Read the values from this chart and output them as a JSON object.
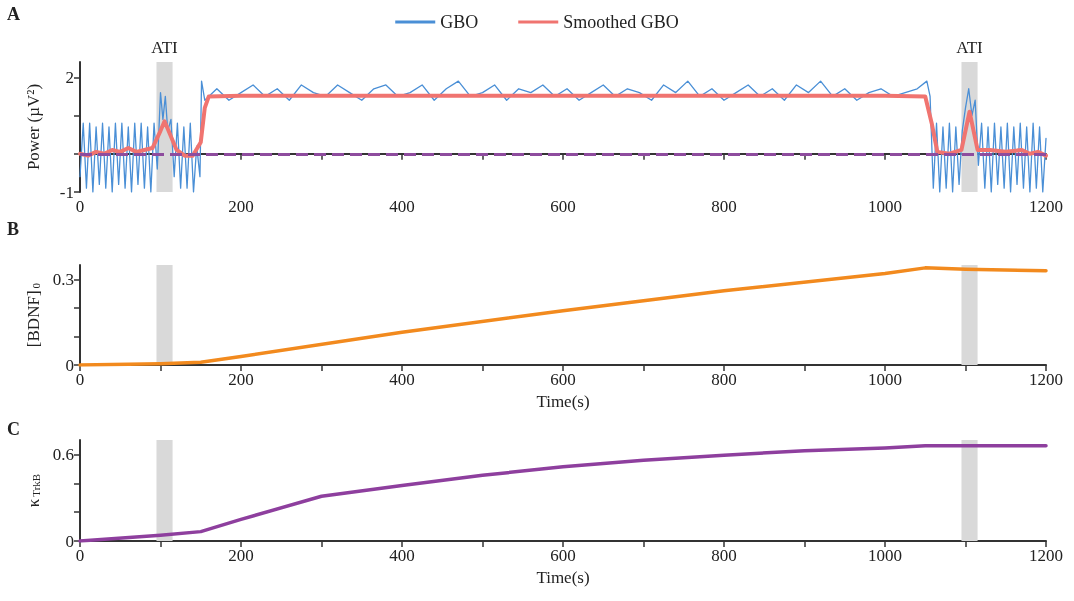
{
  "chart_data": [
    {
      "type": "line",
      "title": "A",
      "ylabel": "Power (µV²)",
      "legend": "top",
      "grid": false,
      "marker": "none",
      "xlim": [
        0,
        1200
      ],
      "xticks": [
        0,
        {
          "value": 100,
          "label": null
        },
        200,
        {
          "value": 300,
          "label": null
        },
        400,
        {
          "value": 500,
          "label": null
        },
        600,
        {
          "value": 700,
          "label": null
        },
        800,
        {
          "value": 900,
          "label": null
        },
        1000,
        {
          "value": 1100,
          "label": null
        },
        1200
      ],
      "ylim": [
        -1,
        2.4
      ],
      "yticks": [
        -1,
        {
          "value": 0,
          "label": null
        },
        {
          "value": 1,
          "label": null
        },
        2
      ],
      "bands": [
        {
          "axis": "x",
          "from": 95,
          "to": 115,
          "label": "ATI",
          "color": "#d9d9d9"
        },
        {
          "axis": "x",
          "from": 1095,
          "to": 1115,
          "label": "ATI",
          "color": "#d9d9d9"
        }
      ],
      "ref_lines": [
        {
          "axis": "y",
          "value": 0,
          "color": "#8e4c9e",
          "line_style": "dashed"
        }
      ],
      "series": [
        {
          "name": "GBO",
          "color": "#4a8fd6",
          "line_style": "solid",
          "x": [
            0,
            4,
            8,
            12,
            16,
            20,
            24,
            28,
            32,
            36,
            40,
            44,
            48,
            52,
            56,
            60,
            64,
            68,
            72,
            76,
            80,
            84,
            88,
            92,
            96,
            100,
            103,
            106,
            109,
            113,
            117,
            121,
            125,
            129,
            133,
            137,
            141,
            145,
            149,
            151,
            155,
            170,
            185,
            200,
            215,
            230,
            245,
            260,
            275,
            290,
            305,
            320,
            335,
            350,
            365,
            380,
            395,
            410,
            425,
            440,
            455,
            470,
            485,
            500,
            515,
            530,
            545,
            560,
            575,
            590,
            605,
            620,
            635,
            650,
            665,
            680,
            695,
            710,
            725,
            740,
            755,
            770,
            785,
            800,
            815,
            830,
            845,
            860,
            875,
            890,
            905,
            920,
            935,
            950,
            965,
            980,
            995,
            1010,
            1025,
            1040,
            1052,
            1056,
            1060,
            1064,
            1068,
            1072,
            1076,
            1080,
            1084,
            1088,
            1092,
            1096,
            1100,
            1104,
            1108,
            1112,
            1116,
            1120,
            1124,
            1128,
            1132,
            1136,
            1140,
            1144,
            1148,
            1152,
            1156,
            1160,
            1164,
            1168,
            1172,
            1176,
            1180,
            1184,
            1188,
            1192,
            1196,
            1200
          ],
          "values": [
            -0.6,
            0.8,
            -0.9,
            0.8,
            -1.0,
            0.7,
            -0.8,
            0.8,
            -0.9,
            0.7,
            -1.0,
            0.8,
            -0.8,
            0.8,
            -0.9,
            0.7,
            -1.0,
            0.8,
            -0.8,
            0.8,
            -0.9,
            0.7,
            -1.0,
            0.8,
            -0.4,
            1.6,
            0.9,
            1.5,
            0.6,
            0.9,
            -0.6,
            0.8,
            -0.9,
            0.7,
            -0.9,
            0.8,
            -1.0,
            0.2,
            -0.6,
            1.9,
            1.4,
            1.7,
            1.4,
            1.6,
            1.8,
            1.5,
            1.7,
            1.4,
            1.8,
            1.6,
            1.5,
            1.8,
            1.6,
            1.4,
            1.7,
            1.8,
            1.5,
            1.6,
            1.8,
            1.4,
            1.7,
            1.9,
            1.5,
            1.6,
            1.8,
            1.4,
            1.7,
            1.6,
            1.8,
            1.5,
            1.7,
            1.4,
            1.6,
            1.8,
            1.5,
            1.7,
            1.6,
            1.4,
            1.8,
            1.6,
            1.9,
            1.5,
            1.7,
            1.4,
            1.6,
            1.8,
            1.5,
            1.7,
            1.4,
            1.8,
            1.6,
            1.9,
            1.5,
            1.7,
            1.4,
            1.6,
            1.7,
            1.5,
            1.6,
            1.7,
            1.9,
            1.5,
            -0.9,
            0.8,
            -1.0,
            0.7,
            -0.9,
            0.8,
            -1.0,
            0.7,
            -0.8,
            0.6,
            1.2,
            1.7,
            1.0,
            1.4,
            -0.3,
            0.8,
            -0.9,
            0.7,
            -1.0,
            0.8,
            -0.8,
            0.7,
            -0.9,
            0.8,
            -1.0,
            0.7,
            -0.8,
            0.8,
            -0.9,
            0.7,
            -1.0,
            0.8,
            -0.9,
            0.7,
            -1.0,
            0.4
          ]
        },
        {
          "name": "Smoothed GBO",
          "color": "#f07470",
          "line_style": "solid",
          "x": [
            0,
            10,
            20,
            30,
            40,
            50,
            60,
            70,
            80,
            90,
            100,
            105,
            110,
            120,
            130,
            140,
            150,
            155,
            160,
            200,
            300,
            400,
            500,
            600,
            700,
            800,
            900,
            1000,
            1050,
            1058,
            1065,
            1080,
            1095,
            1105,
            1115,
            1130,
            1150,
            1170,
            1180,
            1190,
            1200
          ],
          "values": [
            0,
            -0.05,
            0.05,
            0,
            0.1,
            0.05,
            0.15,
            0.05,
            0.1,
            0.15,
            0.6,
            0.85,
            0.6,
            0.1,
            -0.05,
            -0.05,
            0.3,
            1.2,
            1.5,
            1.52,
            1.52,
            1.52,
            1.52,
            1.52,
            1.52,
            1.52,
            1.52,
            1.52,
            1.5,
            0.8,
            0.05,
            0,
            0.1,
            1.1,
            0.1,
            0.1,
            0.05,
            0.1,
            0,
            0.05,
            -0.05
          ]
        }
      ]
    },
    {
      "type": "line",
      "title": "B",
      "ylabel": "[BDNF]$_{0}$",
      "xlabel": "Time(s)",
      "grid": false,
      "marker": "none",
      "xlim": [
        0,
        1200
      ],
      "xticks": [
        0,
        {
          "value": 100,
          "label": null
        },
        200,
        {
          "value": 300,
          "label": null
        },
        400,
        {
          "value": 500,
          "label": null
        },
        600,
        {
          "value": 700,
          "label": null
        },
        800,
        {
          "value": 900,
          "label": null
        },
        1000,
        {
          "value": 1100,
          "label": null
        },
        1200
      ],
      "ylim": [
        0,
        0.35
      ],
      "yticks": [
        0,
        {
          "value": 0.1,
          "label": null
        },
        {
          "value": 0.2,
          "label": null
        },
        0.3
      ],
      "bands": [
        {
          "axis": "x",
          "from": 95,
          "to": 115,
          "color": "#d9d9d9"
        },
        {
          "axis": "x",
          "from": 1095,
          "to": 1115,
          "color": "#d9d9d9"
        }
      ],
      "series": [
        {
          "color": "#f28a1e",
          "line_style": "solid",
          "x": [
            0,
            100,
            150,
            200,
            400,
            600,
            800,
            1000,
            1050,
            1100,
            1200
          ],
          "values": [
            0,
            0.005,
            0.01,
            0.03,
            0.115,
            0.19,
            0.26,
            0.32,
            0.34,
            0.335,
            0.33
          ]
        }
      ]
    },
    {
      "type": "line",
      "title": "C",
      "ylabel": "κ$_{TrkB}$",
      "xlabel": "Time(s)",
      "grid": false,
      "marker": "none",
      "xlim": [
        0,
        1200
      ],
      "xticks": [
        0,
        {
          "value": 100,
          "label": null
        },
        200,
        {
          "value": 300,
          "label": null
        },
        400,
        {
          "value": 500,
          "label": null
        },
        600,
        {
          "value": 700,
          "label": null
        },
        800,
        {
          "value": 900,
          "label": null
        },
        1000,
        {
          "value": 1100,
          "label": null
        },
        1200
      ],
      "ylim": [
        0,
        0.7
      ],
      "yticks": [
        0,
        {
          "value": 0.2,
          "label": null
        },
        {
          "value": 0.4,
          "label": null
        },
        0.6
      ],
      "bands": [
        {
          "axis": "x",
          "from": 95,
          "to": 115,
          "color": "#d9d9d9"
        },
        {
          "axis": "x",
          "from": 1095,
          "to": 1115,
          "color": "#d9d9d9"
        }
      ],
      "series": [
        {
          "color": "#8e3f9e",
          "line_style": "solid",
          "x": [
            0,
            100,
            150,
            200,
            300,
            400,
            500,
            600,
            700,
            800,
            900,
            1000,
            1050,
            1200
          ],
          "values": [
            0,
            0.04,
            0.065,
            0.15,
            0.31,
            0.385,
            0.455,
            0.515,
            0.56,
            0.595,
            0.625,
            0.645,
            0.66,
            0.66
          ]
        }
      ]
    }
  ]
}
